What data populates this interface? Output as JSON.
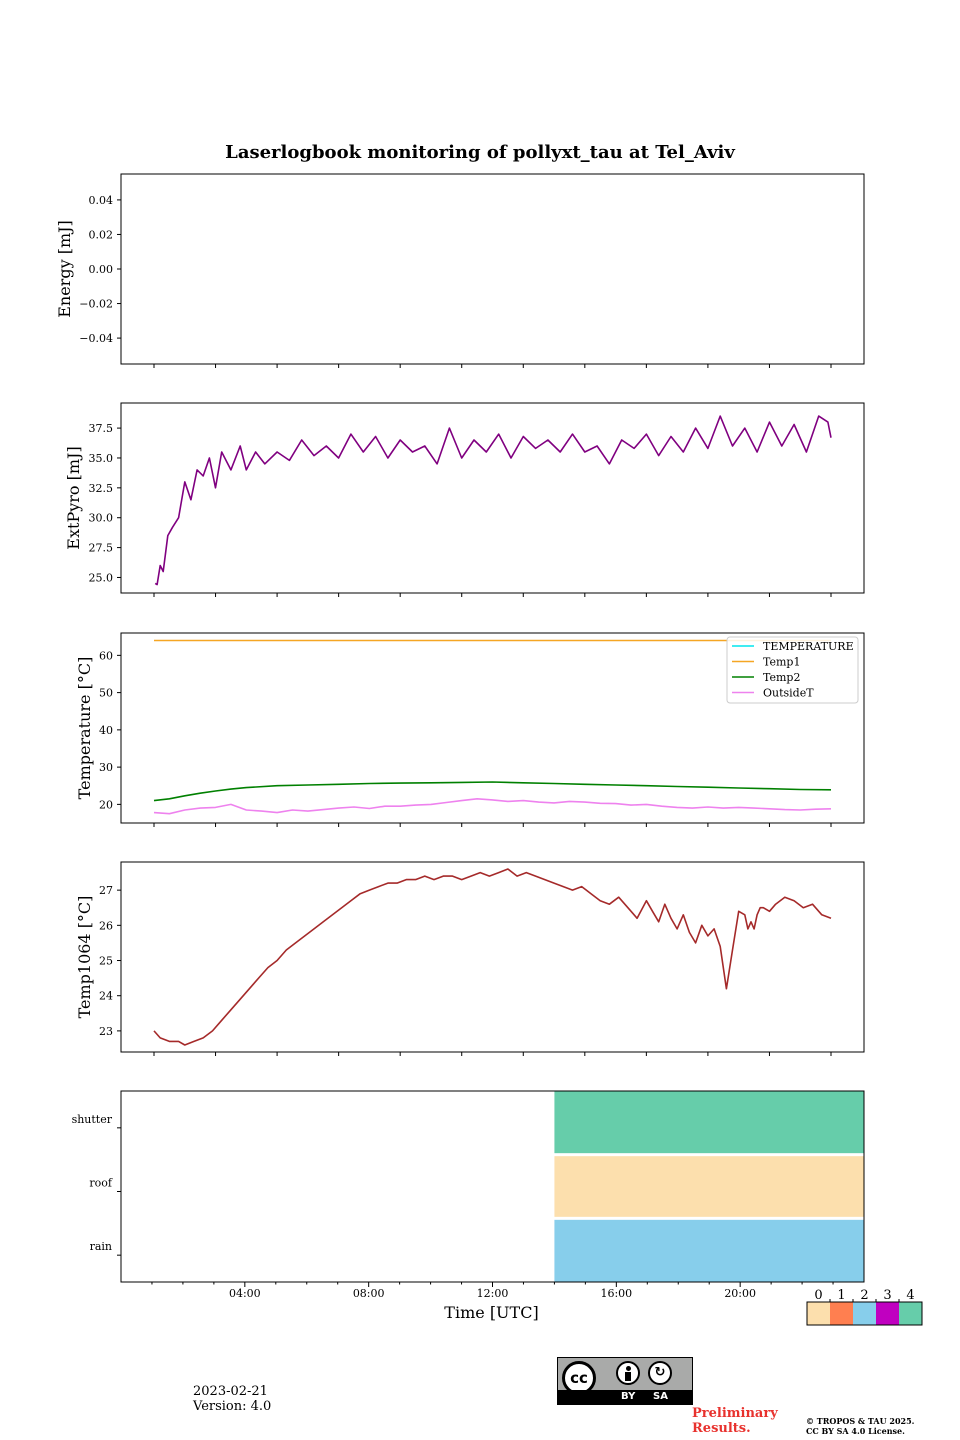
{
  "title": "Laserlogbook monitoring of pollyxt_tau at Tel_Aviv",
  "footer": {
    "date": "2023-02-21",
    "version": "Version: 4.0",
    "preliminary_line1": "Preliminary",
    "preliminary_line2": "Results.",
    "copyright_line1": "© TROPOS & TAU 2025.",
    "copyright_line2": "CC BY SA 4.0 License.",
    "license_by": "BY",
    "license_sa": "SA",
    "license_cc": "cc"
  },
  "colors": {
    "extpyro": "#800080",
    "temperature": "#00e5ee",
    "temp1": "#f5a623",
    "temp2": "#008000",
    "outsideT": "#ee82ee",
    "temp1064": "#a52a2a",
    "status_0": "#fcdfad",
    "status_1": "#ff7f50",
    "status_2": "#87ceeb",
    "status_3": "#c000c0",
    "status_4": "#66cdaa"
  },
  "chart_data": [
    {
      "type": "line",
      "id": "energy",
      "ylabel": "Energy [mJ]",
      "ylim": [
        -0.055,
        0.055
      ],
      "yticks": [
        "0.04",
        "0.02",
        "0.00",
        "−0.02",
        "−0.04"
      ],
      "ytick_values": [
        0.04,
        0.02,
        0.0,
        -0.02,
        -0.04
      ],
      "series": []
    },
    {
      "type": "line",
      "id": "extpyro",
      "ylabel": "ExtPyro [mJ]",
      "ylim": [
        23.7,
        39.6
      ],
      "yticks": [
        "37.5",
        "35.0",
        "32.5",
        "30.0",
        "27.5",
        "25.0"
      ],
      "ytick_values": [
        37.5,
        35.0,
        32.5,
        30.0,
        27.5,
        25.0
      ],
      "series": [
        {
          "x": [
            0.04,
            0.1,
            0.2,
            0.3,
            0.45,
            0.6,
            0.8,
            1.0,
            1.2,
            1.4,
            1.6,
            1.8,
            2.0,
            2.2,
            2.5,
            2.8,
            3.0,
            3.3,
            3.6,
            4.0,
            4.4,
            4.8,
            5.2,
            5.6,
            6.0,
            6.4,
            6.8,
            7.2,
            7.6,
            8.0,
            8.4,
            8.8,
            9.2,
            9.6,
            10.0,
            10.4,
            10.8,
            11.2,
            11.6,
            12.0,
            12.4,
            12.8,
            13.2,
            13.6,
            14.0,
            14.4,
            14.8,
            15.2,
            15.6,
            16.0,
            16.4,
            16.8,
            17.2,
            17.6,
            18.0,
            18.4,
            18.8,
            19.2,
            19.6,
            20.0,
            20.4,
            20.8,
            21.2,
            21.6,
            21.9,
            22.0
          ],
          "y": [
            24.5,
            24.4,
            26.0,
            25.5,
            28.5,
            29.2,
            30.0,
            33.0,
            31.5,
            34.0,
            33.5,
            35.0,
            32.5,
            35.5,
            34.0,
            36.0,
            34.0,
            35.5,
            34.5,
            35.5,
            34.8,
            36.5,
            35.2,
            36.0,
            35.0,
            37.0,
            35.5,
            36.8,
            35.0,
            36.5,
            35.5,
            36.0,
            34.5,
            37.5,
            35.0,
            36.5,
            35.5,
            37.0,
            35.0,
            36.8,
            35.8,
            36.5,
            35.5,
            37.0,
            35.5,
            36.0,
            34.5,
            36.5,
            35.8,
            37.0,
            35.2,
            36.8,
            35.5,
            37.5,
            35.8,
            38.5,
            36.0,
            37.5,
            35.5,
            38.0,
            36.0,
            37.8,
            35.5,
            38.5,
            38.0,
            36.7
          ]
        }
      ]
    },
    {
      "type": "line",
      "id": "temperature",
      "ylabel": "Temperature [°C]",
      "ylim": [
        15,
        66
      ],
      "yticks": [
        "60",
        "50",
        "40",
        "30",
        "20"
      ],
      "ytick_values": [
        60,
        50,
        40,
        30,
        20
      ],
      "legend_position": "upper-right",
      "series": [
        {
          "name": "TEMPERATURE",
          "x": [],
          "y": []
        },
        {
          "name": "Temp1",
          "x": [
            0.0,
            22.0
          ],
          "y": [
            64,
            64
          ]
        },
        {
          "name": "Temp2",
          "x": [
            0.0,
            0.5,
            1.0,
            1.5,
            2.0,
            2.5,
            3.0,
            4.0,
            5.0,
            6.0,
            7.0,
            8.0,
            9.0,
            10.0,
            11.0,
            12.0,
            13.0,
            14.0,
            15.0,
            16.0,
            17.0,
            18.0,
            19.0,
            20.0,
            21.0,
            22.0
          ],
          "y": [
            21.0,
            21.5,
            22.3,
            23.0,
            23.6,
            24.1,
            24.5,
            25.0,
            25.2,
            25.4,
            25.6,
            25.7,
            25.8,
            25.9,
            26.0,
            25.8,
            25.6,
            25.4,
            25.2,
            25.0,
            24.8,
            24.6,
            24.4,
            24.2,
            24.0,
            23.9
          ]
        },
        {
          "name": "OutsideT",
          "x": [
            0.0,
            0.5,
            1.0,
            1.5,
            2.0,
            2.5,
            3.0,
            3.5,
            4.0,
            4.5,
            5.0,
            5.5,
            6.0,
            6.5,
            7.0,
            7.5,
            8.0,
            8.5,
            9.0,
            9.5,
            10.0,
            10.5,
            11.0,
            11.5,
            12.0,
            12.5,
            13.0,
            13.5,
            14.0,
            14.5,
            15.0,
            15.5,
            16.0,
            16.5,
            17.0,
            17.5,
            18.0,
            18.5,
            19.0,
            19.5,
            20.0,
            20.5,
            21.0,
            21.5,
            22.0
          ],
          "y": [
            17.8,
            17.5,
            18.5,
            19.0,
            19.2,
            20.0,
            18.5,
            18.2,
            17.8,
            18.5,
            18.2,
            18.6,
            19.0,
            19.3,
            18.9,
            19.5,
            19.5,
            19.8,
            20.0,
            20.5,
            21.0,
            21.5,
            21.2,
            20.8,
            21.0,
            20.6,
            20.4,
            20.8,
            20.6,
            20.3,
            20.2,
            19.8,
            20.0,
            19.5,
            19.2,
            19.0,
            19.3,
            19.0,
            19.2,
            19.0,
            18.8,
            18.6,
            18.5,
            18.7,
            18.8
          ]
        }
      ]
    },
    {
      "type": "line",
      "id": "temp1064",
      "ylabel": "Temp1064 [°C]",
      "ylim": [
        22.4,
        27.8
      ],
      "yticks": [
        "27",
        "26",
        "25",
        "24",
        "23"
      ],
      "ytick_values": [
        27,
        26,
        25,
        24,
        23
      ],
      "series": [
        {
          "x": [
            0.0,
            0.2,
            0.5,
            0.8,
            1.0,
            1.3,
            1.6,
            1.9,
            2.2,
            2.5,
            2.8,
            3.1,
            3.4,
            3.7,
            4.0,
            4.3,
            4.6,
            4.9,
            5.2,
            5.5,
            5.8,
            6.1,
            6.4,
            6.7,
            7.0,
            7.3,
            7.6,
            7.9,
            8.2,
            8.5,
            8.8,
            9.1,
            9.4,
            9.7,
            10.0,
            10.3,
            10.6,
            10.9,
            11.2,
            11.5,
            11.8,
            12.1,
            12.4,
            12.7,
            13.0,
            13.3,
            13.6,
            13.9,
            14.2,
            14.5,
            14.8,
            15.1,
            15.4,
            15.7,
            16.0,
            16.2,
            16.4,
            16.6,
            16.8,
            17.0,
            17.2,
            17.4,
            17.6,
            17.8,
            18.0,
            18.2,
            18.4,
            18.6,
            18.8,
            19.0,
            19.2,
            19.3,
            19.4,
            19.5,
            19.6,
            19.7,
            19.8,
            20.0,
            20.2,
            20.5,
            20.8,
            21.1,
            21.4,
            21.7,
            22.0
          ],
          "y": [
            23.0,
            22.8,
            22.7,
            22.7,
            22.6,
            22.7,
            22.8,
            23.0,
            23.3,
            23.6,
            23.9,
            24.2,
            24.5,
            24.8,
            25.0,
            25.3,
            25.5,
            25.7,
            25.9,
            26.1,
            26.3,
            26.5,
            26.7,
            26.9,
            27.0,
            27.1,
            27.2,
            27.2,
            27.3,
            27.3,
            27.4,
            27.3,
            27.4,
            27.4,
            27.3,
            27.4,
            27.5,
            27.4,
            27.5,
            27.6,
            27.4,
            27.5,
            27.4,
            27.3,
            27.2,
            27.1,
            27.0,
            27.1,
            26.9,
            26.7,
            26.6,
            26.8,
            26.5,
            26.2,
            26.7,
            26.4,
            26.1,
            26.6,
            26.2,
            25.9,
            26.3,
            25.8,
            25.5,
            26.0,
            25.7,
            25.9,
            25.4,
            24.2,
            25.3,
            26.4,
            26.3,
            25.9,
            26.1,
            25.9,
            26.3,
            26.5,
            26.5,
            26.4,
            26.6,
            26.8,
            26.7,
            26.5,
            26.6,
            26.3,
            26.2
          ]
        }
      ]
    },
    {
      "type": "heatmap",
      "id": "status",
      "xlabel": "Time [UTC]",
      "xlim_hours": [
        0,
        24
      ],
      "xticks": [
        "04:00",
        "08:00",
        "12:00",
        "16:00",
        "20:00"
      ],
      "xtick_hours": [
        4,
        8,
        12,
        16,
        20
      ],
      "rows": [
        "shutter",
        "roof",
        "rain"
      ],
      "blocks": [
        {
          "row": "shutter",
          "start_hour": 14.0,
          "end_hour": 24.0,
          "value": 4
        },
        {
          "row": "roof",
          "start_hour": 14.0,
          "end_hour": 24.0,
          "value": 0
        },
        {
          "row": "rain",
          "start_hour": 14.0,
          "end_hour": 24.0,
          "value": 2
        }
      ],
      "colorbar_ticks": [
        "0",
        "1",
        "2",
        "3",
        "4"
      ]
    }
  ]
}
